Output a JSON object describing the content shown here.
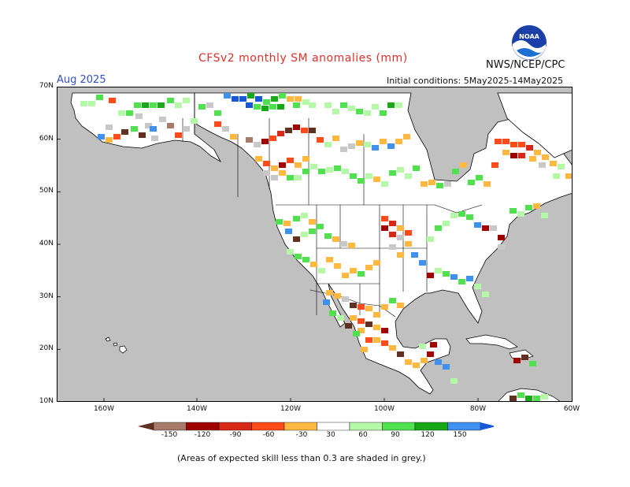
{
  "header": {
    "title": "CFSv2 monthly SM anomalies (mm)",
    "valid_month": "Aug 2025",
    "agency": "NWS/NCEP/CPC",
    "initial_conditions": "Initial conditions: 5May2025-14May2025",
    "logo_text": "NOAA"
  },
  "axes": {
    "lat_labels": [
      "70N",
      "60N",
      "50N",
      "40N",
      "30N",
      "20N",
      "10N"
    ],
    "lon_labels": [
      "160W",
      "140W",
      "120W",
      "100W",
      "80W",
      "60W"
    ]
  },
  "colorbar": {
    "labels": [
      "-150",
      "-120",
      "-90",
      "-60",
      "-30",
      "30",
      "60",
      "90",
      "120",
      "150"
    ],
    "colors": [
      "#603020",
      "#a87a6a",
      "#a00000",
      "#d82818",
      "#ff4a1a",
      "#ffb840",
      "#ffffff",
      "#b4f8a8",
      "#50e050",
      "#18a818",
      "#4090f0",
      "#1858d8"
    ]
  },
  "footnote": "(Areas of expected skill less than 0.3 are shaded in grey.)",
  "colors": {
    "ocean": "#c0c0c0",
    "land": "#ffffff",
    "skill_grey": "#c8c8c8"
  }
}
